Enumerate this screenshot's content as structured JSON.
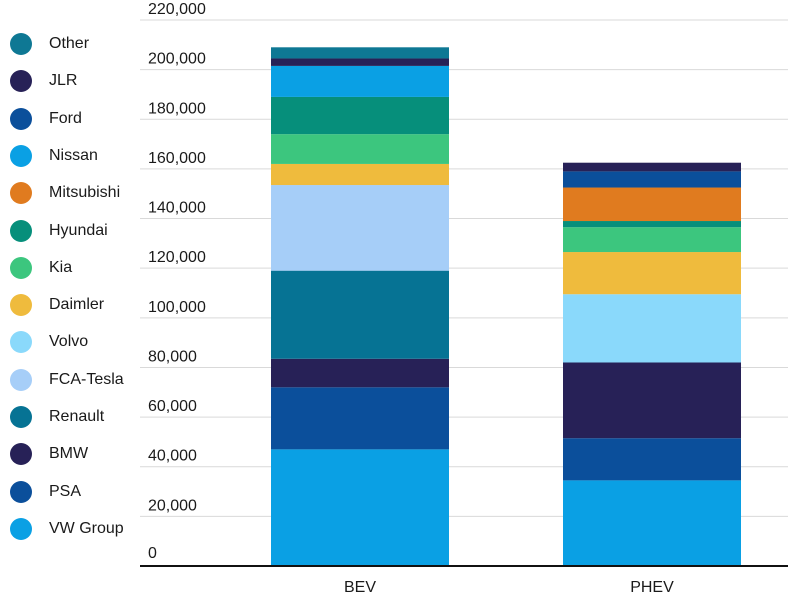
{
  "chart_data": {
    "type": "bar",
    "stacked": true,
    "categories": [
      "BEV",
      "PHEV"
    ],
    "ylim": [
      0,
      220000
    ],
    "yticks": [
      0,
      20000,
      40000,
      60000,
      80000,
      100000,
      120000,
      140000,
      160000,
      180000,
      200000,
      220000
    ],
    "ytick_labels": [
      "0",
      "20,000",
      "40,000",
      "60,000",
      "80,000",
      "100,000",
      "120,000",
      "140,000",
      "160,000",
      "180,000",
      "200,000",
      "220,000"
    ],
    "grid": true,
    "legend_position": "left",
    "series": [
      {
        "name": "VW Group",
        "color": "#0aa0e4",
        "values": [
          47000,
          34500
        ]
      },
      {
        "name": "PSA",
        "color": "#0b4f9b",
        "values": [
          25000,
          17000
        ]
      },
      {
        "name": "BMW",
        "color": "#272157",
        "values": [
          11500,
          30500
        ]
      },
      {
        "name": "Renault",
        "color": "#067394",
        "values": [
          35500,
          0
        ]
      },
      {
        "name": "FCA-Tesla",
        "color": "#a6cef8",
        "values": [
          34500,
          0
        ]
      },
      {
        "name": "Volvo",
        "color": "#8ad9fb",
        "values": [
          0,
          27500
        ]
      },
      {
        "name": "Daimler",
        "color": "#efbb3d",
        "values": [
          8500,
          17000
        ]
      },
      {
        "name": "Kia",
        "color": "#3cc67e",
        "values": [
          12000,
          10000
        ]
      },
      {
        "name": "Hyundai",
        "color": "#068f7b",
        "values": [
          15000,
          2500
        ]
      },
      {
        "name": "Mitsubishi",
        "color": "#e07b1f",
        "values": [
          0,
          13500
        ]
      },
      {
        "name": "Nissan",
        "color": "#0aa0e4",
        "values": [
          12500,
          0
        ]
      },
      {
        "name": "Ford",
        "color": "#0b4f9b",
        "values": [
          0,
          6500
        ]
      },
      {
        "name": "JLR",
        "color": "#272157",
        "values": [
          3000,
          3500
        ]
      },
      {
        "name": "Other",
        "color": "#0e7894",
        "values": [
          4500,
          0
        ]
      }
    ]
  },
  "legend": {
    "order": [
      "Other",
      "JLR",
      "Ford",
      "Nissan",
      "Mitsubishi",
      "Hyundai",
      "Kia",
      "Daimler",
      "Volvo",
      "FCA-Tesla",
      "Renault",
      "BMW",
      "PSA",
      "VW Group"
    ]
  }
}
